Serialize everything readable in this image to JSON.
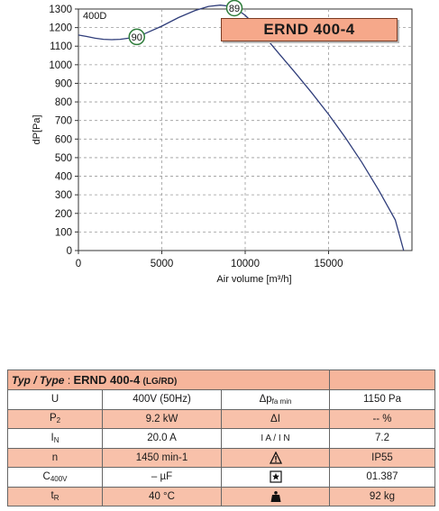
{
  "chart_data": {
    "type": "line",
    "ylabel": "dP[Pa]",
    "xlabel": "Air volume [m³/h]",
    "xlim": [
      0,
      20000
    ],
    "ylim": [
      0,
      1300
    ],
    "x_ticks": [
      0,
      5000,
      10000,
      15000
    ],
    "y_ticks": [
      0,
      100,
      200,
      300,
      400,
      500,
      600,
      700,
      800,
      900,
      1000,
      1100,
      1200,
      1300
    ],
    "x_tick_labels": [
      "0",
      "5000",
      "10000",
      "15000"
    ],
    "y_tick_labels": [
      "0",
      "100",
      "200",
      "300",
      "400",
      "500",
      "600",
      "700",
      "800",
      "900",
      "1000",
      "1100",
      "1200",
      "1300"
    ],
    "grid": true,
    "curve_label": "400D",
    "series": [
      {
        "x": [
          0,
          500,
          1000,
          1500,
          2000,
          2500,
          3000,
          3500,
          4000,
          5000,
          6000,
          7000,
          7800,
          8500,
          9000,
          9500,
          10000,
          10500,
          11000,
          11500,
          12000,
          13000,
          14000,
          15000,
          16000,
          17000,
          18000,
          19000,
          19500
        ],
        "y": [
          1160,
          1152,
          1143,
          1137,
          1135,
          1137,
          1143,
          1153,
          1168,
          1208,
          1254,
          1292,
          1314,
          1321,
          1316,
          1298,
          1266,
          1222,
          1170,
          1116,
          1063,
          957,
          848,
          733,
          609,
          474,
          326,
          165,
          0
        ]
      }
    ],
    "annotations": [
      {
        "label": "90",
        "x": 3500,
        "y": 1150
      },
      {
        "label": "89",
        "x": 9350,
        "y": 1305
      }
    ]
  },
  "model_label": "ERND 400-4",
  "table": {
    "header": {
      "type_label": "Typ /",
      "type_label_it": "Type",
      "colon": ":",
      "model": "ERND 400-4",
      "suffix": "(LG/RD)"
    },
    "rows": [
      {
        "sym_main": "U",
        "sym_sub": "",
        "value": "400V (50Hz)",
        "sym2_main": "Δp",
        "sym2_sub": "fa min",
        "value2": "1150 Pa",
        "icon": ""
      },
      {
        "sym_main": "P",
        "sym_sub": "2",
        "value": "9.2 kW",
        "sym2_main": "ΔI",
        "sym2_sub": "",
        "value2": "-- %",
        "icon": ""
      },
      {
        "sym_main": "I",
        "sym_sub": "N",
        "value": "20.0 A",
        "sym2_main": "I A / I N",
        "sym2_sub": "",
        "value2": "7.2",
        "icon": ""
      },
      {
        "sym_main": "n",
        "sym_sub": "",
        "value": "1450 min-1",
        "sym2_main": "",
        "sym2_sub": "",
        "value2": "IP55",
        "icon": "warning-icon"
      },
      {
        "sym_main": "C",
        "sym_sub": "400V",
        "value": "– µF",
        "sym2_main": "",
        "sym2_sub": "",
        "value2": "01.387",
        "icon": "star-box-icon"
      },
      {
        "sym_main": "t",
        "sym_sub": "R",
        "value": "40 °C",
        "sym2_main": "",
        "sym2_sub": "",
        "value2": "92 kg",
        "icon": "weight-icon"
      }
    ]
  }
}
